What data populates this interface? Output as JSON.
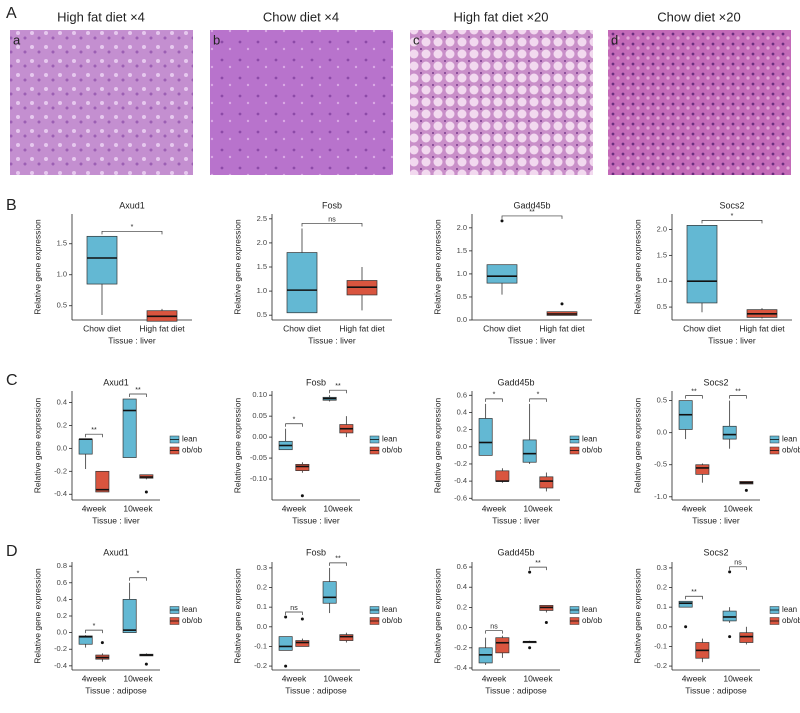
{
  "panel_labels": [
    "A",
    "B",
    "C",
    "D"
  ],
  "images": [
    {
      "label": "a",
      "title": "High fat diet  ×4"
    },
    {
      "label": "b",
      "title": "Chow diet  ×4"
    },
    {
      "label": "c",
      "title": "High fat diet  ×20"
    },
    {
      "label": "d",
      "title": "Chow diet  ×20"
    }
  ],
  "chart_data": [
    {
      "type": "box",
      "title": "Axud1",
      "ylabel": "Relative gene expression",
      "xlabel": "Tissue : liver",
      "categories": [
        "Chow diet",
        "High fat diet"
      ],
      "ylim": [
        0.27,
        1.98
      ],
      "yticks": [
        0.5,
        {
          "value": 1,
          "label": "1.0"
        },
        1.5
      ],
      "boxes": [
        {
          "color": "#63b8d3",
          "min": 0.35,
          "q1": 0.85,
          "median": 1.27,
          "q3": 1.62,
          "max": 1.62
        },
        {
          "color": "#d9553f",
          "min": 0.25,
          "q1": 0.25,
          "median": 0.33,
          "q3": 0.42,
          "max": 0.45
        }
      ],
      "significance": "*"
    },
    {
      "type": "box",
      "title": "Fosb",
      "ylabel": "Relative gene expression",
      "xlabel": "Tissue : liver",
      "categories": [
        "Chow diet",
        "High fat diet"
      ],
      "ylim": [
        0.4,
        2.6
      ],
      "yticks": [
        0.5,
        {
          "value": 1,
          "label": "1.0"
        },
        1.5,
        {
          "value": 2,
          "label": "2.0"
        },
        2.5
      ],
      "boxes": [
        {
          "color": "#63b8d3",
          "min": 0.55,
          "q1": 0.55,
          "median": 1.02,
          "q3": 1.8,
          "max": 2.3
        },
        {
          "color": "#d9553f",
          "min": 0.6,
          "q1": 0.92,
          "median": 1.08,
          "q3": 1.22,
          "max": 1.5
        }
      ],
      "significance": "ns"
    },
    {
      "type": "box",
      "title": "Gadd45b",
      "ylabel": "Relative gene expression",
      "xlabel": "Tissue : liver",
      "categories": [
        "Chow diet",
        "High fat diet"
      ],
      "ylim": [
        0,
        2.3
      ],
      "yticks": [
        {
          "value": 0,
          "label": "0.0"
        },
        0.5,
        {
          "value": 1,
          "label": "1.0"
        },
        1.5,
        {
          "value": 2,
          "label": "2.0"
        }
      ],
      "boxes": [
        {
          "color": "#63b8d3",
          "min": 0.55,
          "q1": 0.8,
          "median": 0.95,
          "q3": 1.2,
          "max": 1.2,
          "outliers": [
            2.15
          ]
        },
        {
          "color": "#d9553f",
          "min": 0.1,
          "q1": 0.1,
          "median": 0.13,
          "q3": 0.18,
          "max": 0.18,
          "outliers": [
            0.35
          ]
        }
      ],
      "significance": "**"
    },
    {
      "type": "box",
      "title": "Socs2",
      "ylabel": "Relative gene expression",
      "xlabel": "Tissue : liver",
      "categories": [
        "Chow diet",
        "High fat diet"
      ],
      "ylim": [
        0.25,
        2.3
      ],
      "yticks": [
        0.5,
        {
          "value": 1,
          "label": "1.0"
        },
        1.5,
        {
          "value": 2,
          "label": "2.0"
        }
      ],
      "boxes": [
        {
          "color": "#63b8d3",
          "min": 0.4,
          "q1": 0.58,
          "median": 1.0,
          "q3": 2.08,
          "max": 2.08
        },
        {
          "color": "#d9553f",
          "min": 0.28,
          "q1": 0.3,
          "median": 0.37,
          "q3": 0.45,
          "max": 0.48
        }
      ],
      "significance": "*"
    },
    {
      "type": "box",
      "title": "Axud1",
      "ylabel": "Relative gene expression",
      "xlabel": "Tissue : liver",
      "categories": [
        "4week",
        "10week"
      ],
      "ylim": [
        -0.45,
        0.5
      ],
      "legend": "right",
      "yticks": [
        -0.4,
        -0.2,
        {
          "value": 0,
          "label": "0.0"
        },
        0.2,
        0.4
      ],
      "series": [
        {
          "name": "lean",
          "color": "#63b8d3",
          "boxes": [
            {
              "min": -0.18,
              "q1": -0.05,
              "median": 0.08,
              "q3": 0.08,
              "max": 0.08
            },
            {
              "min": -0.08,
              "q1": -0.08,
              "median": 0.33,
              "q3": 0.43,
              "max": 0.43
            }
          ]
        },
        {
          "name": "ob/ob",
          "color": "#d9553f",
          "boxes": [
            {
              "min": -0.38,
              "q1": -0.38,
              "median": -0.36,
              "q3": -0.2,
              "max": -0.2
            },
            {
              "min": -0.27,
              "q1": -0.26,
              "median": -0.25,
              "q3": -0.23,
              "max": -0.23,
              "outliers": [
                -0.38
              ]
            }
          ]
        }
      ],
      "significance": [
        "**",
        "**"
      ]
    },
    {
      "type": "box",
      "title": "Fosb",
      "ylabel": "Relative gene expression",
      "xlabel": "Tissue : liver",
      "categories": [
        "4week",
        "10week"
      ],
      "ylim": [
        -0.15,
        0.11
      ],
      "legend": "right",
      "yticks": [
        {
          "value": -0.1,
          "label": "-0.10"
        },
        {
          "value": -0.05,
          "label": "-0.05"
        },
        {
          "value": 0,
          "label": "0.00"
        },
        {
          "value": 0.05,
          "label": "0.05"
        },
        {
          "value": 0.1,
          "label": "0.10"
        }
      ],
      "series": [
        {
          "name": "lean",
          "color": "#63b8d3",
          "boxes": [
            {
              "min": -0.03,
              "q1": -0.03,
              "median": -0.02,
              "q3": -0.01,
              "max": 0.02
            },
            {
              "min": 0.085,
              "q1": 0.088,
              "median": 0.092,
              "q3": 0.095,
              "max": 0.1
            }
          ]
        },
        {
          "name": "ob/ob",
          "color": "#d9553f",
          "boxes": [
            {
              "min": -0.085,
              "q1": -0.08,
              "median": -0.07,
              "q3": -0.065,
              "max": -0.06,
              "outliers": [
                -0.14
              ]
            },
            {
              "min": 0.0,
              "q1": 0.01,
              "median": 0.02,
              "q3": 0.03,
              "max": 0.05
            }
          ]
        }
      ],
      "significance": [
        "*",
        "**"
      ]
    },
    {
      "type": "box",
      "title": "Gadd45b",
      "ylabel": "Relative gene expression",
      "xlabel": "Tissue : liver",
      "categories": [
        "4week",
        "10week"
      ],
      "ylim": [
        -0.62,
        0.65
      ],
      "legend": "right",
      "yticks": [
        -0.6,
        -0.4,
        -0.2,
        {
          "value": 0,
          "label": "0.0"
        },
        0.2,
        0.4,
        0.6
      ],
      "series": [
        {
          "name": "lean",
          "color": "#63b8d3",
          "boxes": [
            {
              "min": -0.1,
              "q1": -0.1,
              "median": 0.05,
              "q3": 0.33,
              "max": 0.5
            },
            {
              "min": -0.2,
              "q1": -0.18,
              "median": -0.08,
              "q3": 0.08,
              "max": 0.5
            }
          ]
        },
        {
          "name": "ob/ob",
          "color": "#d9553f",
          "boxes": [
            {
              "min": -0.42,
              "q1": -0.4,
              "median": -0.4,
              "q3": -0.28,
              "max": -0.25
            },
            {
              "min": -0.52,
              "q1": -0.48,
              "median": -0.4,
              "q3": -0.35,
              "max": -0.3
            }
          ]
        }
      ],
      "significance": [
        "*",
        "*"
      ]
    },
    {
      "type": "box",
      "title": "Socs2",
      "ylabel": "Relative gene expression",
      "xlabel": "Tissue : liver",
      "categories": [
        "4week",
        "10week"
      ],
      "ylim": [
        -1.05,
        0.65
      ],
      "legend": "right",
      "yticks": [
        {
          "value": -1,
          "label": "-1.0"
        },
        -0.5,
        {
          "value": 0,
          "label": "0.0"
        },
        0.5
      ],
      "series": [
        {
          "name": "lean",
          "color": "#63b8d3",
          "boxes": [
            {
              "min": -0.1,
              "q1": 0.05,
              "median": 0.28,
              "q3": 0.5,
              "max": 0.5
            },
            {
              "min": -0.25,
              "q1": -0.1,
              "median": -0.03,
              "q3": 0.1,
              "max": 0.5
            }
          ]
        },
        {
          "name": "ob/ob",
          "color": "#d9553f",
          "boxes": [
            {
              "min": -0.78,
              "q1": -0.65,
              "median": -0.55,
              "q3": -0.5,
              "max": -0.48
            },
            {
              "min": -0.8,
              "q1": -0.8,
              "median": -0.78,
              "q3": -0.76,
              "max": -0.76,
              "outliers": [
                -0.9
              ]
            }
          ]
        }
      ],
      "significance": [
        "**",
        "**"
      ]
    },
    {
      "type": "box",
      "title": "Axud1",
      "ylabel": "Relative gene expression",
      "xlabel": "Tissue : adipose",
      "categories": [
        "4week",
        "10week"
      ],
      "ylim": [
        -0.45,
        0.85
      ],
      "legend": "right",
      "yticks": [
        -0.4,
        -0.2,
        {
          "value": 0,
          "label": "0.0"
        },
        0.2,
        0.4,
        0.6,
        0.8
      ],
      "series": [
        {
          "name": "lean",
          "color": "#63b8d3",
          "boxes": [
            {
              "min": -0.18,
              "q1": -0.14,
              "median": -0.05,
              "q3": -0.04,
              "max": -0.03
            },
            {
              "min": 0.0,
              "q1": 0.0,
              "median": 0.03,
              "q3": 0.4,
              "max": 0.6
            }
          ]
        },
        {
          "name": "ob/ob",
          "color": "#d9553f",
          "boxes": [
            {
              "min": -0.35,
              "q1": -0.32,
              "median": -0.3,
              "q3": -0.27,
              "max": -0.25,
              "outliers": [
                -0.12
              ]
            },
            {
              "min": -0.28,
              "q1": -0.28,
              "median": -0.27,
              "q3": -0.26,
              "max": -0.25,
              "outliers": [
                -0.38
              ]
            }
          ]
        }
      ],
      "significance": [
        "*",
        "*"
      ]
    },
    {
      "type": "box",
      "title": "Fosb",
      "ylabel": "Relative gene expression",
      "xlabel": "Tissue : adipose",
      "categories": [
        "4week",
        "10week"
      ],
      "ylim": [
        -0.22,
        0.33
      ],
      "legend": "right",
      "yticks": [
        -0.2,
        -0.1,
        {
          "value": 0,
          "label": "0.0"
        },
        0.1,
        0.2,
        0.3
      ],
      "series": [
        {
          "name": "lean",
          "color": "#63b8d3",
          "boxes": [
            {
              "min": -0.12,
              "q1": -0.12,
              "median": -0.1,
              "q3": -0.05,
              "max": -0.05,
              "outliers": [
                0.05,
                -0.2
              ]
            },
            {
              "min": 0.07,
              "q1": 0.12,
              "median": 0.15,
              "q3": 0.23,
              "max": 0.3
            }
          ]
        },
        {
          "name": "ob/ob",
          "color": "#d9553f",
          "boxes": [
            {
              "min": -0.1,
              "q1": -0.1,
              "median": -0.08,
              "q3": -0.07,
              "max": -0.06,
              "outliers": [
                0.04
              ]
            },
            {
              "min": -0.08,
              "q1": -0.07,
              "median": -0.05,
              "q3": -0.04,
              "max": -0.03
            }
          ]
        }
      ],
      "significance": [
        "ns",
        "**"
      ]
    },
    {
      "type": "box",
      "title": "Gadd45b",
      "ylabel": "Relative gene expression",
      "xlabel": "Tissue : adipose",
      "categories": [
        "4week",
        "10week"
      ],
      "ylim": [
        -0.42,
        0.65
      ],
      "legend": "right",
      "yticks": [
        -0.4,
        -0.2,
        {
          "value": 0,
          "label": "0.0"
        },
        0.2,
        0.4,
        0.6
      ],
      "series": [
        {
          "name": "lean",
          "color": "#63b8d3",
          "boxes": [
            {
              "min": -0.37,
              "q1": -0.35,
              "median": -0.27,
              "q3": -0.2,
              "max": -0.1
            },
            {
              "min": -0.15,
              "q1": -0.15,
              "median": -0.14,
              "q3": -0.14,
              "max": -0.13,
              "outliers": [
                0.55,
                -0.2
              ]
            }
          ]
        },
        {
          "name": "ob/ob",
          "color": "#d9553f",
          "boxes": [
            {
              "min": -0.3,
              "q1": -0.25,
              "median": -0.15,
              "q3": -0.1,
              "max": -0.08
            },
            {
              "min": 0.15,
              "q1": 0.17,
              "median": 0.2,
              "q3": 0.22,
              "max": 0.22,
              "outliers": [
                0.05
              ]
            }
          ]
        }
      ],
      "significance": [
        "ns",
        "**"
      ]
    },
    {
      "type": "box",
      "title": "Socs2",
      "ylabel": "Relative gene expression",
      "xlabel": "Tissue : adipose",
      "categories": [
        "4week",
        "10week"
      ],
      "ylim": [
        -0.22,
        0.33
      ],
      "legend": "right",
      "yticks": [
        -0.2,
        -0.1,
        {
          "value": 0,
          "label": "0.0"
        },
        0.1,
        0.2,
        0.3
      ],
      "series": [
        {
          "name": "lean",
          "color": "#63b8d3",
          "boxes": [
            {
              "min": 0.1,
              "q1": 0.1,
              "median": 0.12,
              "q3": 0.13,
              "max": 0.13,
              "outliers": [
                0.0
              ]
            },
            {
              "min": 0.02,
              "q1": 0.03,
              "median": 0.05,
              "q3": 0.08,
              "max": 0.1,
              "outliers": [
                0.28,
                -0.05
              ]
            }
          ]
        },
        {
          "name": "ob/ob",
          "color": "#d9553f",
          "boxes": [
            {
              "min": -0.18,
              "q1": -0.16,
              "median": -0.12,
              "q3": -0.08,
              "max": -0.06
            },
            {
              "min": -0.09,
              "q1": -0.08,
              "median": -0.05,
              "q3": -0.03,
              "max": 0.0
            }
          ]
        }
      ],
      "significance": [
        "**",
        "ns"
      ]
    }
  ]
}
